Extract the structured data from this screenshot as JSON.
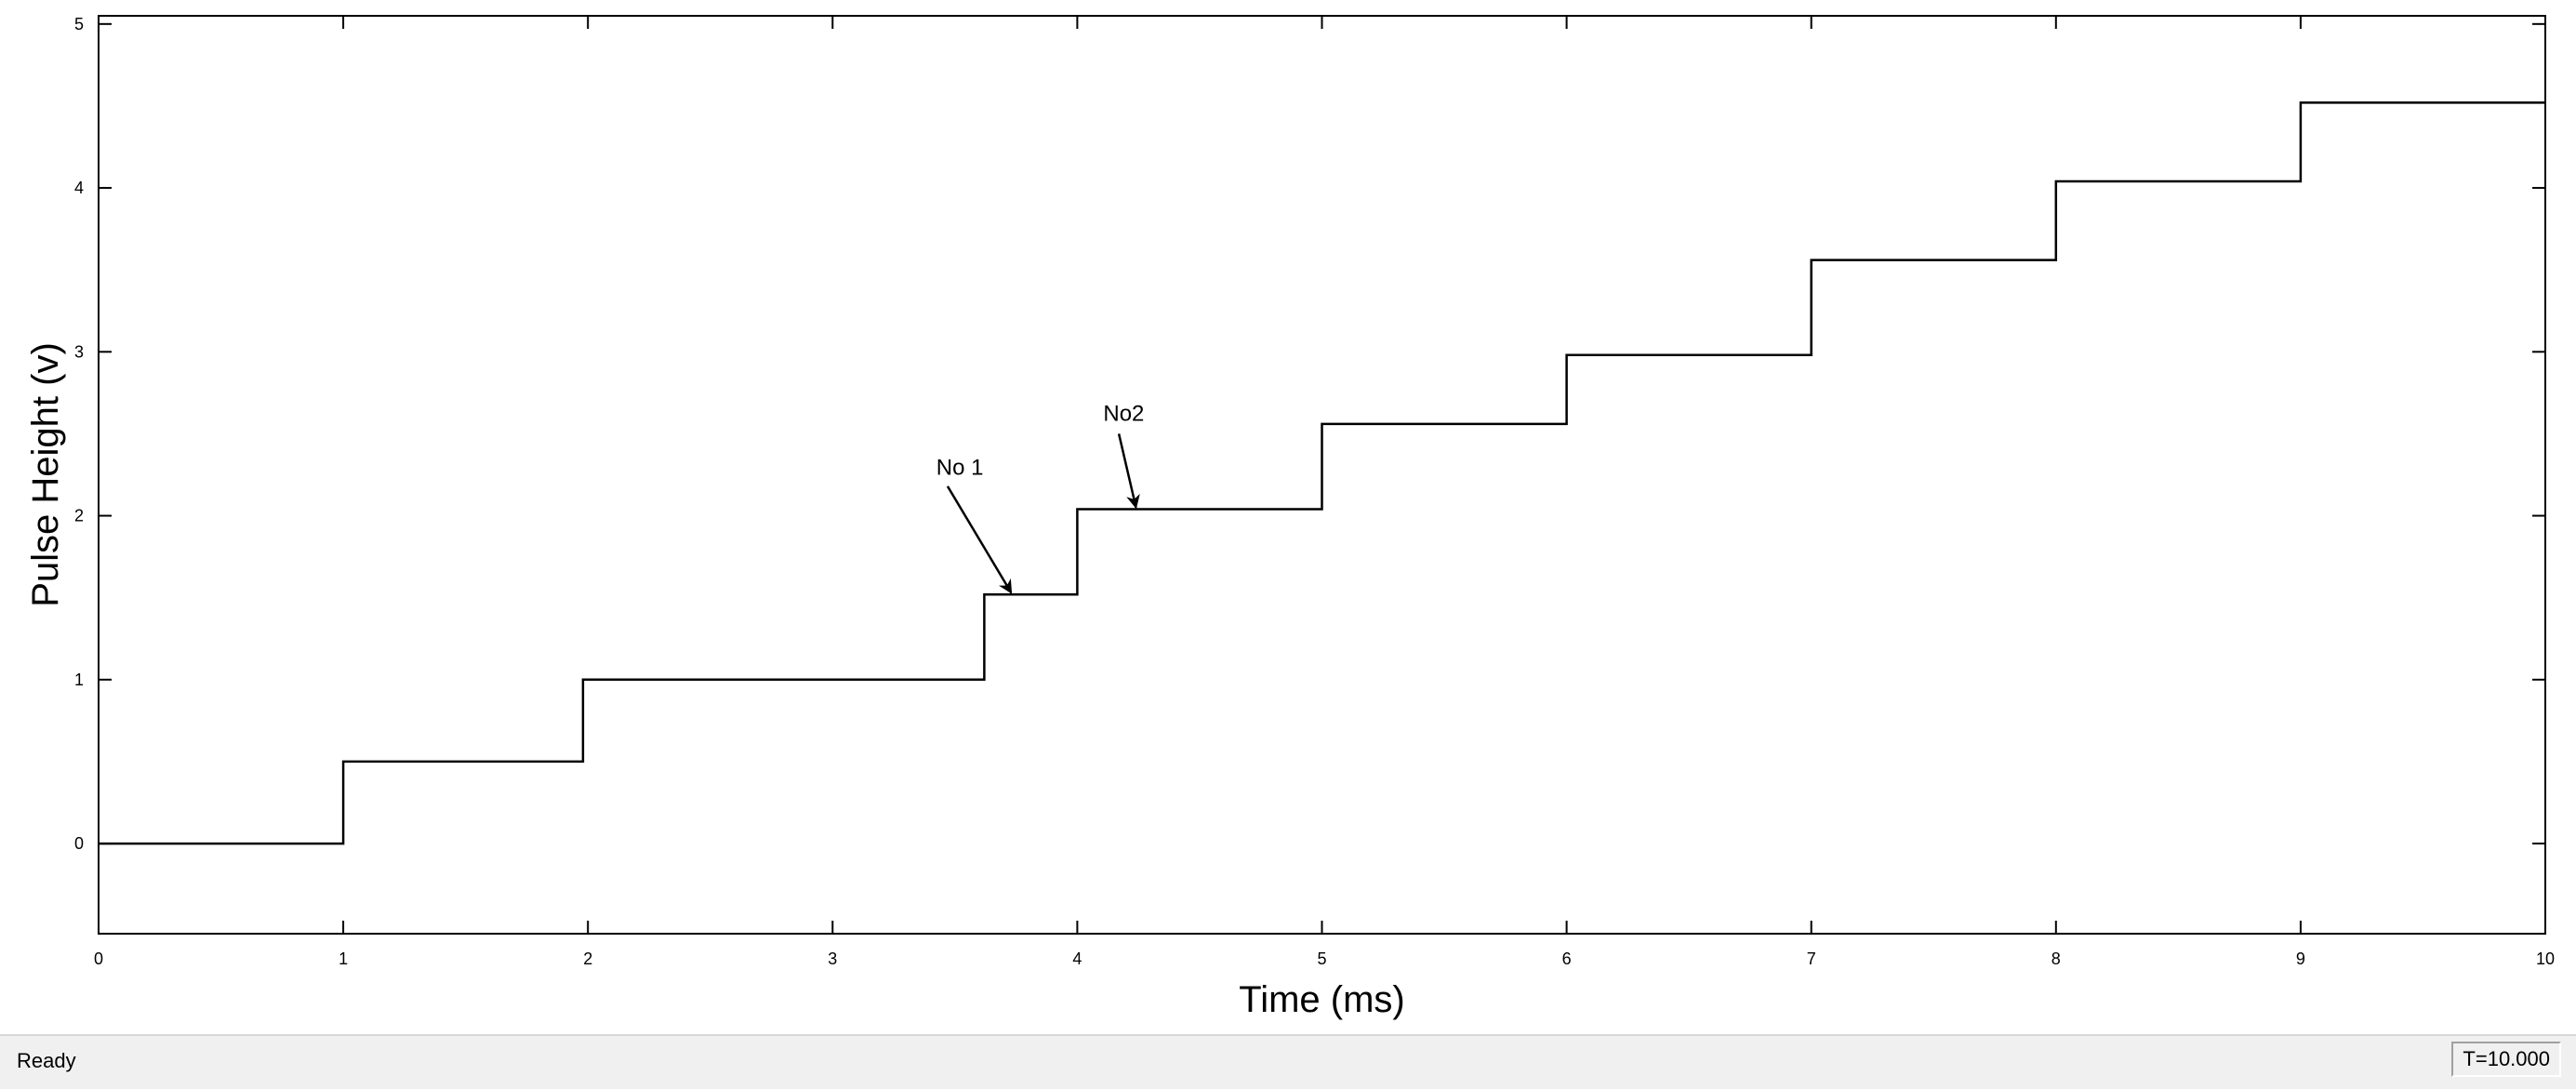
{
  "chart_data": {
    "type": "line",
    "step": true,
    "xlabel": "Time (ms)",
    "ylabel": "Pulse Height (v)",
    "xlim": [
      0,
      10
    ],
    "ylim": [
      -0.55,
      5.05
    ],
    "xticks": [
      0,
      1,
      2,
      3,
      4,
      5,
      6,
      7,
      8,
      9,
      10
    ],
    "yticks": [
      0,
      1,
      2,
      3,
      4,
      5
    ],
    "xtick_labels": [
      "0",
      "1",
      "2",
      "3",
      "4",
      "5",
      "6",
      "7",
      "8",
      "9",
      "10"
    ],
    "ytick_labels": [
      "0",
      "1",
      "2",
      "3",
      "4",
      "5"
    ],
    "grid": false,
    "series": [
      {
        "x": [
          0,
          1,
          1,
          1.98,
          1.98,
          3.62,
          3.62,
          4.0,
          4.0,
          5.0,
          5.0,
          6.0,
          6.0,
          7.0,
          7.0,
          8.0,
          8.0,
          9.0,
          9.0,
          10.0
        ],
        "y": [
          0,
          0,
          0.5,
          0.5,
          1.0,
          1.0,
          1.52,
          1.52,
          2.04,
          2.04,
          2.56,
          2.56,
          2.98,
          2.98,
          3.56,
          3.56,
          4.04,
          4.04,
          4.52,
          4.52
        ],
        "color": "#000000"
      }
    ],
    "annotations": [
      {
        "text": "No 1",
        "label_x": 3.52,
        "label_y": 2.25,
        "arrow_from": [
          3.47,
          2.18
        ],
        "arrow_to": [
          3.73,
          1.53
        ]
      },
      {
        "text": "No2",
        "label_x": 4.19,
        "label_y": 2.58,
        "arrow_from": [
          4.17,
          2.5
        ],
        "arrow_to": [
          4.24,
          2.05
        ]
      }
    ]
  },
  "status": {
    "text": "Ready",
    "time": "T=10.000"
  }
}
